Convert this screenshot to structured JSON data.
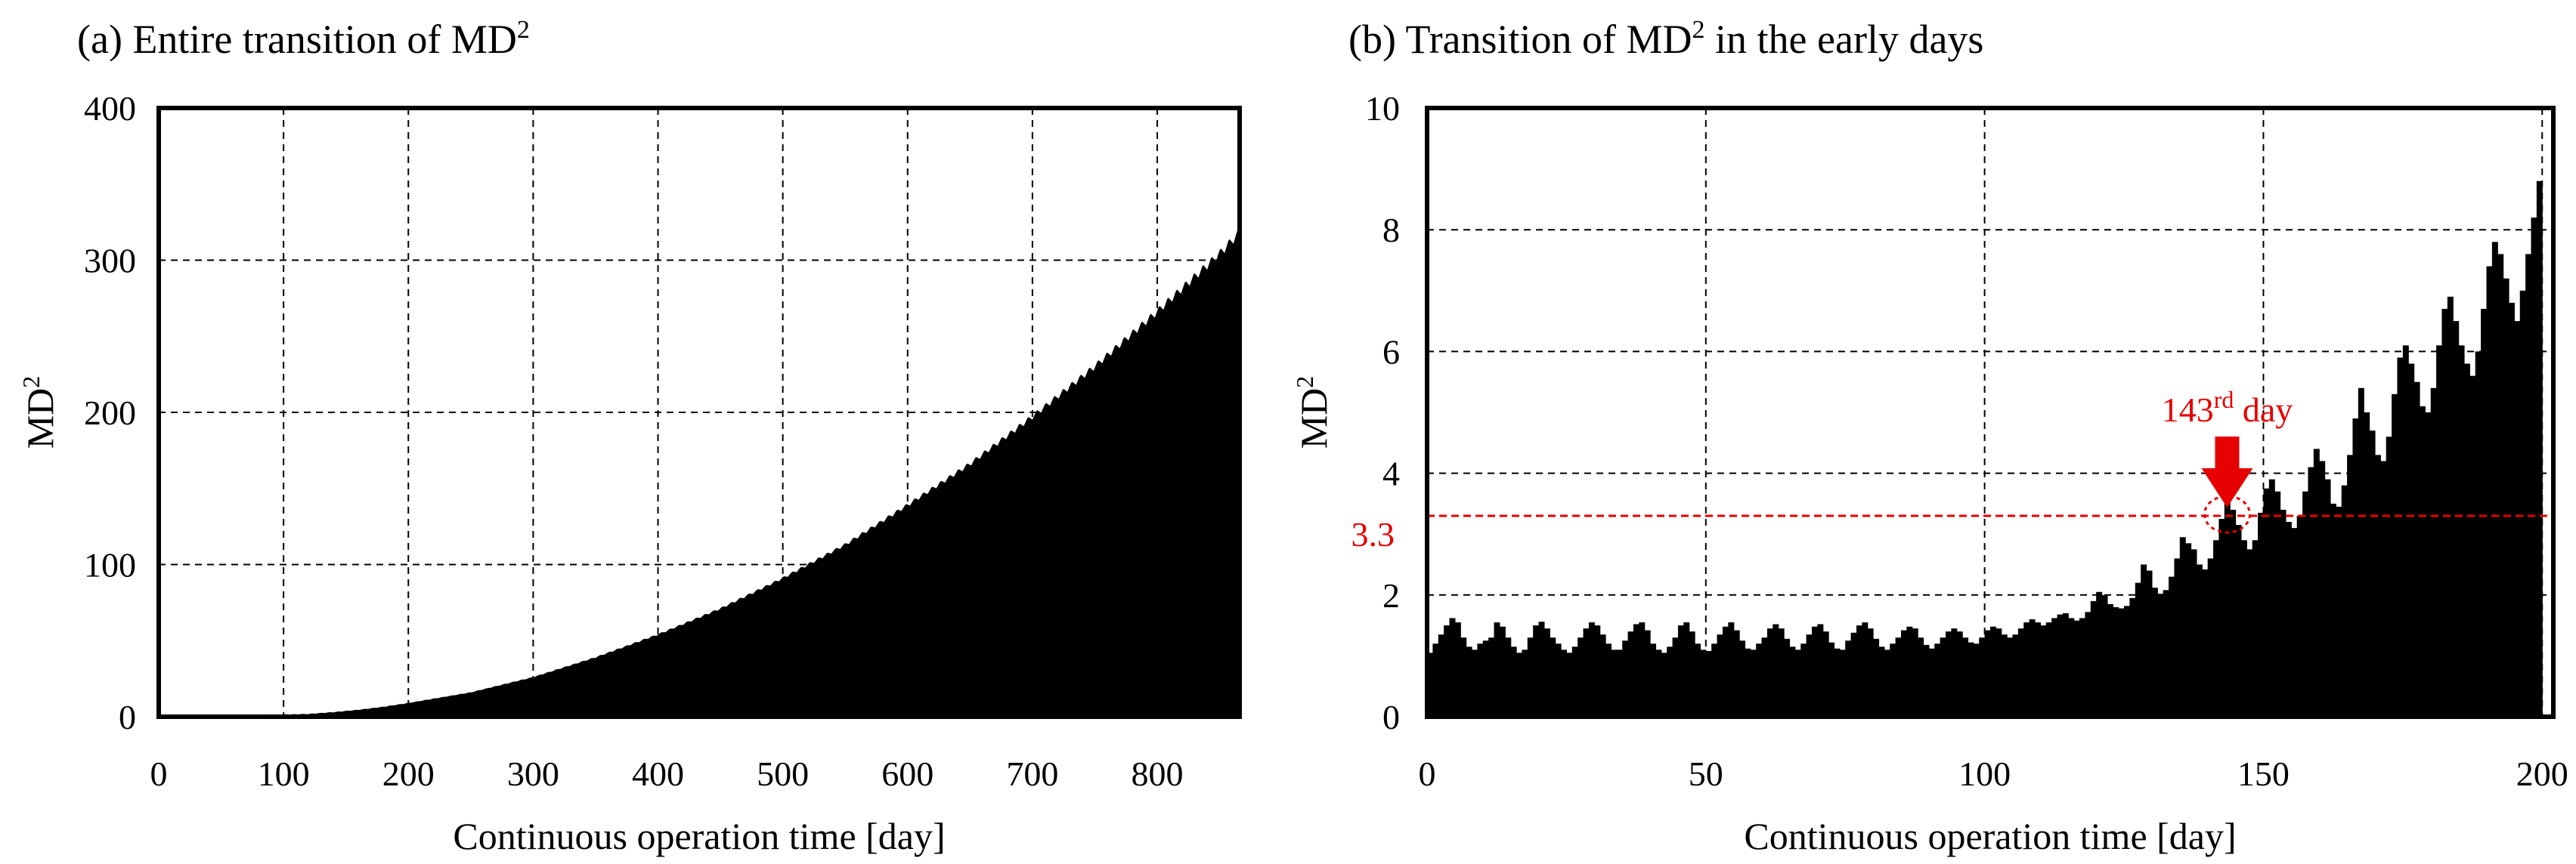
{
  "chart_data": [
    {
      "type": "area",
      "title_main": "(a) Entire transition of MD",
      "title_sup": "2",
      "xlabel": "Continuous operation time [day]",
      "ylabel_main": "MD",
      "ylabel_sup": "2",
      "xlim": [
        0,
        866
      ],
      "ylim": [
        0,
        400
      ],
      "xticks": [
        0,
        100,
        200,
        300,
        400,
        500,
        600,
        700,
        800
      ],
      "yticks": [
        0,
        100,
        200,
        300,
        400
      ],
      "series": [
        {
          "name": "MD2",
          "x": [
            0,
            50,
            100,
            120,
            140,
            160,
            180,
            200,
            250,
            300,
            350,
            400,
            450,
            500,
            550,
            600,
            650,
            700,
            750,
            800,
            850,
            866
          ],
          "values": [
            1.2,
            1.3,
            1.4,
            1.8,
            3.0,
            4.5,
            6.5,
            9,
            16,
            26,
            39,
            54,
            71,
            91,
            113,
            139,
            166,
            197,
            230,
            266,
            304,
            318
          ]
        }
      ]
    },
    {
      "type": "bar",
      "title_main": "(b) Transition of MD",
      "title_sup": "2",
      "title_rest": " in the early days",
      "xlabel": "Continuous operation time [day]",
      "ylabel_main": "MD",
      "ylabel_sup": "2",
      "xlim": [
        0,
        202
      ],
      "ylim": [
        0,
        10
      ],
      "xticks": [
        0,
        50,
        100,
        150,
        200
      ],
      "yticks": [
        0,
        2,
        4,
        6,
        8,
        10
      ],
      "threshold": 3.3,
      "threshold_label": "3.3",
      "annotation_main": "143",
      "annotation_sup": "rd",
      "annotation_rest": " day",
      "annotation_x": 143,
      "series": [
        {
          "name": "MD2",
          "values": [
            1.05,
            1.2,
            1.35,
            1.5,
            1.62,
            1.55,
            1.3,
            1.15,
            1.1,
            1.2,
            1.25,
            1.3,
            1.55,
            1.48,
            1.3,
            1.15,
            1.05,
            1.1,
            1.3,
            1.5,
            1.56,
            1.45,
            1.3,
            1.2,
            1.1,
            1.05,
            1.15,
            1.3,
            1.45,
            1.55,
            1.5,
            1.35,
            1.2,
            1.1,
            1.1,
            1.25,
            1.4,
            1.52,
            1.55,
            1.42,
            1.2,
            1.1,
            1.05,
            1.15,
            1.3,
            1.5,
            1.55,
            1.4,
            1.2,
            1.1,
            1.08,
            1.2,
            1.35,
            1.48,
            1.55,
            1.42,
            1.25,
            1.12,
            1.1,
            1.2,
            1.3,
            1.45,
            1.52,
            1.45,
            1.28,
            1.15,
            1.1,
            1.2,
            1.35,
            1.48,
            1.52,
            1.4,
            1.22,
            1.12,
            1.1,
            1.25,
            1.38,
            1.5,
            1.55,
            1.45,
            1.28,
            1.15,
            1.1,
            1.2,
            1.3,
            1.42,
            1.48,
            1.45,
            1.3,
            1.18,
            1.12,
            1.2,
            1.3,
            1.4,
            1.45,
            1.4,
            1.3,
            1.22,
            1.2,
            1.3,
            1.42,
            1.48,
            1.45,
            1.35,
            1.3,
            1.35,
            1.45,
            1.55,
            1.6,
            1.55,
            1.5,
            1.55,
            1.62,
            1.68,
            1.7,
            1.62,
            1.58,
            1.62,
            1.72,
            1.9,
            2.05,
            2.0,
            1.85,
            1.8,
            1.78,
            1.82,
            1.95,
            2.2,
            2.5,
            2.4,
            2.12,
            2.02,
            2.08,
            2.3,
            2.6,
            2.95,
            2.85,
            2.75,
            2.5,
            2.42,
            2.6,
            2.9,
            3.25,
            3.55,
            3.4,
            3.15,
            2.9,
            2.75,
            2.9,
            3.35,
            3.75,
            3.9,
            3.7,
            3.4,
            3.2,
            3.1,
            3.3,
            3.7,
            4.1,
            4.4,
            4.2,
            3.9,
            3.5,
            3.45,
            3.8,
            4.3,
            4.9,
            5.4,
            5.0,
            4.7,
            4.3,
            4.2,
            4.6,
            5.3,
            5.9,
            6.1,
            5.8,
            5.5,
            5.1,
            5.0,
            5.4,
            6.1,
            6.7,
            6.9,
            6.5,
            6.1,
            5.8,
            5.6,
            6.0,
            6.7,
            7.4,
            7.8,
            7.6,
            7.2,
            6.8,
            6.5,
            7.0,
            7.6,
            8.2,
            8.8
          ]
        }
      ]
    }
  ]
}
